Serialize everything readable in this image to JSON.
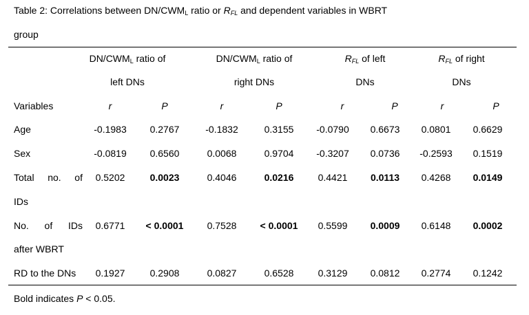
{
  "caption": {
    "prefix": "Table 2: Correlations between DN/CWM",
    "sub1": "L",
    "middle": " ratio or ",
    "rfl_R": "R",
    "rfl_sub": "FL",
    "suffix": " and dependent variables in WBRT",
    "line2": "group"
  },
  "header": {
    "col1": {
      "line1_prefix": "DN/CWM",
      "line1_sub": "L",
      "line1_suffix": " ratio of",
      "line2": "left DNs"
    },
    "col2": {
      "line1_prefix": "DN/CWM",
      "line1_sub": "L",
      "line1_suffix": " ratio of",
      "line2": "right DNs"
    },
    "col3": {
      "line1_R": "R",
      "line1_sub": "FL",
      "line1_suffix": " of left",
      "line2": "DNs"
    },
    "col4": {
      "line1_R": "R",
      "line1_sub": "FL",
      "line1_suffix": " of right",
      "line2": "DNs"
    },
    "variables_label": "Variables",
    "r": "r",
    "p": "P"
  },
  "rows": [
    {
      "var": "Age",
      "vals": [
        "-0.1983",
        "0.2767",
        "-0.1832",
        "0.3155",
        "-0.0790",
        "0.6673",
        "0.0801",
        "0.6629"
      ]
    },
    {
      "var": "Sex",
      "vals": [
        "-0.0819",
        "0.6560",
        "0.0068",
        "0.9704",
        "-0.3207",
        "0.0736",
        "-0.2593",
        "0.1519"
      ]
    },
    {
      "var_words": [
        "Total",
        "no.",
        "of"
      ],
      "var_line2": "IDs",
      "vals": [
        "0.5202",
        "0.0023",
        "0.4046",
        "0.0216",
        "0.4421",
        "0.0113",
        "0.4268",
        "0.0149"
      ]
    },
    {
      "var_words": [
        "No.",
        "of",
        "IDs"
      ],
      "var_line2": "after WBRT",
      "vals": [
        "0.6771",
        "< 0.0001",
        "0.7528",
        "< 0.0001",
        "0.5599",
        "0.0009",
        "0.6148",
        "0.0002"
      ]
    },
    {
      "var": "RD to the DNs",
      "vals": [
        "0.1927",
        "0.2908",
        "0.0827",
        "0.6528",
        "0.3129",
        "0.0812",
        "0.2774",
        "0.1242"
      ]
    }
  ],
  "footnote": {
    "prefix": "Bold indicates ",
    "p": "P",
    "suffix": " < 0.05."
  }
}
